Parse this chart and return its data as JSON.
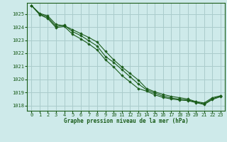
{
  "title": "Graphe pression niveau de la mer (hPa)",
  "background_color": "#ceeaea",
  "plot_bg_color": "#ceeaea",
  "grid_color": "#aacccc",
  "line_color": "#1a5c1a",
  "marker_color": "#1a5c1a",
  "xlim": [
    -0.5,
    23.5
  ],
  "ylim": [
    1017.6,
    1025.85
  ],
  "yticks": [
    1018,
    1019,
    1020,
    1021,
    1022,
    1023,
    1024,
    1025
  ],
  "xticks": [
    0,
    1,
    2,
    3,
    4,
    5,
    6,
    7,
    8,
    9,
    10,
    11,
    12,
    13,
    14,
    15,
    16,
    17,
    18,
    19,
    20,
    21,
    22,
    23
  ],
  "series": [
    [
      1025.65,
      1025.05,
      1024.85,
      1024.2,
      1024.1,
      1023.8,
      1023.5,
      1023.2,
      1022.85,
      1022.15,
      1021.5,
      1020.95,
      1020.45,
      1019.95,
      1019.3,
      1019.05,
      1018.85,
      1018.7,
      1018.6,
      1018.5,
      1018.3,
      1018.2,
      1018.6,
      1018.75
    ],
    [
      1025.65,
      1025.0,
      1024.75,
      1024.05,
      1024.15,
      1023.65,
      1023.35,
      1022.95,
      1022.55,
      1021.75,
      1021.3,
      1020.75,
      1020.2,
      1019.65,
      1019.2,
      1018.95,
      1018.72,
      1018.58,
      1018.48,
      1018.42,
      1018.28,
      1018.12,
      1018.52,
      1018.72
    ],
    [
      1025.65,
      1024.95,
      1024.65,
      1023.95,
      1024.05,
      1023.45,
      1023.1,
      1022.7,
      1022.25,
      1021.5,
      1020.95,
      1020.3,
      1019.8,
      1019.3,
      1019.1,
      1018.82,
      1018.62,
      1018.5,
      1018.42,
      1018.38,
      1018.22,
      1018.08,
      1018.46,
      1018.68
    ]
  ],
  "ylabel_fontsize": 5.5,
  "tick_fontsize": 5.0
}
